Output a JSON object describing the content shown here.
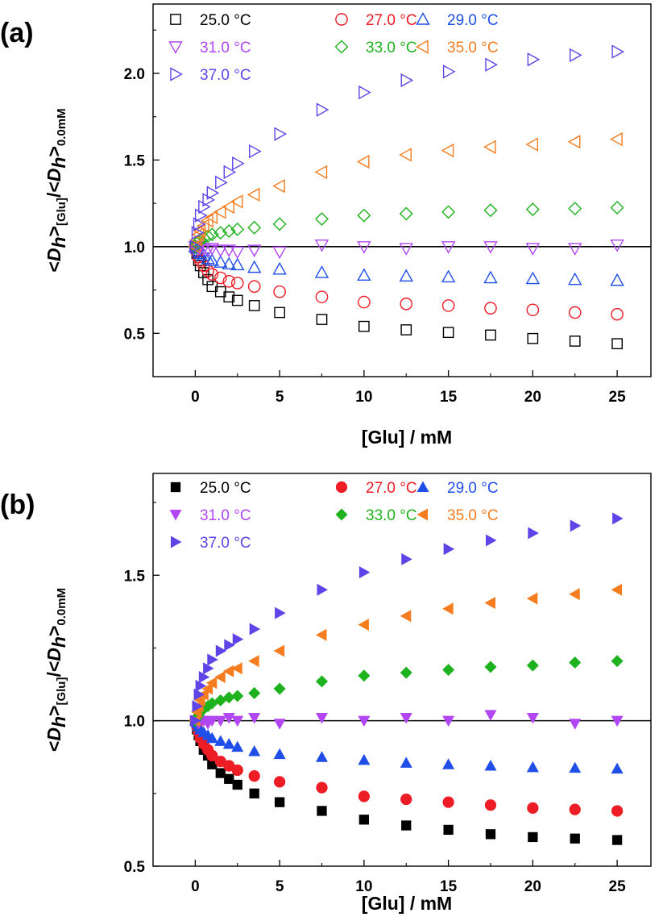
{
  "legend_labels": [
    "25.0 °C",
    "27.0 °C",
    "29.0 °C",
    "31.0 °C",
    "33.0 °C",
    "35.0 °C",
    "37.0 °C"
  ],
  "series_colors": [
    "#000000",
    "#ee1c25",
    "#1f4ee8",
    "#b146f2",
    "#1fb21f",
    "#f57c1f",
    "#6144e8"
  ],
  "series_markers": [
    "square",
    "circle",
    "triangle-up",
    "triangle-down",
    "diamond",
    "triangle-left",
    "triangle-right"
  ],
  "reference_line_y": 1.0,
  "chart_data": [
    {
      "type": "scatter",
      "panel_label": "(a)",
      "marker_fill": "open",
      "xlabel": "[Glu]  /  mM",
      "ylabel": "<Dh>[Glu]/<Dh>0.0mM",
      "xlim": [
        -2.5,
        27
      ],
      "ylim": [
        0.25,
        2.4
      ],
      "x_ticks": [
        0,
        5,
        10,
        15,
        20,
        25
      ],
      "y_ticks": [
        0.5,
        1.0,
        1.5,
        2.0
      ],
      "x_tick_labels": [
        "0",
        "5",
        "10",
        "15",
        "20",
        "25"
      ],
      "y_tick_labels": [
        "0.5",
        "1.0",
        "1.5",
        "2.0"
      ],
      "x": [
        0,
        0.1,
        0.2,
        0.3,
        0.5,
        0.75,
        1.0,
        1.5,
        2.0,
        2.5,
        3.5,
        5,
        7.5,
        10,
        12.5,
        15,
        17.5,
        20,
        22.5,
        25
      ],
      "series": [
        {
          "name": "25.0 °C",
          "values": [
            1.0,
            0.96,
            0.92,
            0.89,
            0.85,
            0.81,
            0.77,
            0.74,
            0.71,
            0.69,
            0.66,
            0.62,
            0.58,
            0.54,
            0.52,
            0.505,
            0.49,
            0.47,
            0.455,
            0.44
          ]
        },
        {
          "name": "27.0 °C",
          "values": [
            1.0,
            0.97,
            0.94,
            0.92,
            0.89,
            0.86,
            0.84,
            0.82,
            0.8,
            0.79,
            0.77,
            0.74,
            0.71,
            0.68,
            0.67,
            0.66,
            0.645,
            0.635,
            0.62,
            0.61
          ]
        },
        {
          "name": "29.0 °C",
          "values": [
            1.0,
            0.99,
            0.97,
            0.96,
            0.95,
            0.93,
            0.92,
            0.91,
            0.9,
            0.895,
            0.88,
            0.87,
            0.85,
            0.835,
            0.83,
            0.825,
            0.82,
            0.815,
            0.81,
            0.805
          ]
        },
        {
          "name": "31.0 °C",
          "values": [
            1.0,
            1.0,
            0.99,
            1.0,
            0.99,
            0.98,
            0.99,
            0.98,
            0.98,
            0.97,
            0.98,
            0.97,
            1.01,
            1.0,
            0.99,
            1.0,
            1.0,
            0.99,
            0.99,
            1.01
          ]
        },
        {
          "name": "33.0 °C",
          "values": [
            1.0,
            1.02,
            1.03,
            1.04,
            1.05,
            1.06,
            1.07,
            1.08,
            1.09,
            1.1,
            1.11,
            1.13,
            1.16,
            1.18,
            1.19,
            1.2,
            1.21,
            1.215,
            1.22,
            1.225
          ]
        },
        {
          "name": "35.0 °C",
          "values": [
            1.0,
            1.04,
            1.07,
            1.09,
            1.12,
            1.15,
            1.17,
            1.2,
            1.23,
            1.26,
            1.3,
            1.35,
            1.43,
            1.49,
            1.53,
            1.555,
            1.575,
            1.59,
            1.605,
            1.62
          ]
        },
        {
          "name": "37.0 °C",
          "values": [
            1.0,
            1.08,
            1.13,
            1.18,
            1.23,
            1.27,
            1.31,
            1.37,
            1.43,
            1.48,
            1.55,
            1.65,
            1.79,
            1.89,
            1.96,
            2.01,
            2.05,
            2.08,
            2.105,
            2.125
          ]
        }
      ]
    },
    {
      "type": "scatter",
      "panel_label": "(b)",
      "marker_fill": "filled",
      "xlabel": "[Glu]  /  mM",
      "ylabel": "<Dh>[Glu]/<Dh>0.0mM",
      "xlim": [
        -2.5,
        27
      ],
      "ylim": [
        0.5,
        1.85
      ],
      "x_ticks": [
        0,
        5,
        10,
        15,
        20,
        25
      ],
      "y_ticks": [
        0.5,
        1.0,
        1.5
      ],
      "x_tick_labels": [
        "0",
        "5",
        "10",
        "15",
        "20",
        "25"
      ],
      "y_tick_labels": [
        "0.5",
        "1.0",
        "1.5"
      ],
      "x": [
        0,
        0.1,
        0.2,
        0.3,
        0.5,
        0.75,
        1.0,
        1.5,
        2.0,
        2.5,
        3.5,
        5,
        7.5,
        10,
        12.5,
        15,
        17.5,
        20,
        22.5,
        25
      ],
      "series": [
        {
          "name": "25.0 °C",
          "values": [
            1.0,
            0.97,
            0.95,
            0.93,
            0.9,
            0.88,
            0.85,
            0.82,
            0.8,
            0.78,
            0.75,
            0.72,
            0.69,
            0.66,
            0.64,
            0.625,
            0.61,
            0.6,
            0.595,
            0.59
          ]
        },
        {
          "name": "27.0 °C",
          "values": [
            1.0,
            0.98,
            0.96,
            0.94,
            0.92,
            0.9,
            0.88,
            0.86,
            0.845,
            0.83,
            0.81,
            0.79,
            0.77,
            0.74,
            0.73,
            0.72,
            0.71,
            0.7,
            0.695,
            0.69
          ]
        },
        {
          "name": "29.0 °C",
          "values": [
            1.0,
            0.99,
            0.98,
            0.97,
            0.96,
            0.95,
            0.94,
            0.93,
            0.92,
            0.91,
            0.895,
            0.885,
            0.875,
            0.865,
            0.855,
            0.85,
            0.845,
            0.84,
            0.838,
            0.835
          ]
        },
        {
          "name": "31.0 °C",
          "values": [
            1.0,
            1.0,
            0.99,
            1.0,
            1.0,
            0.99,
            1.0,
            1.0,
            1.01,
            1.0,
            1.01,
            0.99,
            1.01,
            1.0,
            1.01,
            1.0,
            1.02,
            1.01,
            0.99,
            1.0
          ]
        },
        {
          "name": "33.0 °C",
          "values": [
            1.0,
            1.01,
            1.02,
            1.03,
            1.04,
            1.05,
            1.06,
            1.07,
            1.08,
            1.085,
            1.095,
            1.11,
            1.135,
            1.155,
            1.165,
            1.175,
            1.185,
            1.19,
            1.2,
            1.205
          ]
        },
        {
          "name": "35.0 °C",
          "values": [
            1.0,
            1.03,
            1.05,
            1.07,
            1.09,
            1.11,
            1.13,
            1.15,
            1.17,
            1.18,
            1.205,
            1.24,
            1.295,
            1.33,
            1.36,
            1.385,
            1.405,
            1.42,
            1.435,
            1.45
          ]
        },
        {
          "name": "37.0 °C",
          "values": [
            1.0,
            1.05,
            1.09,
            1.12,
            1.15,
            1.18,
            1.21,
            1.24,
            1.26,
            1.28,
            1.315,
            1.37,
            1.45,
            1.51,
            1.555,
            1.59,
            1.62,
            1.645,
            1.67,
            1.695
          ]
        }
      ]
    }
  ]
}
